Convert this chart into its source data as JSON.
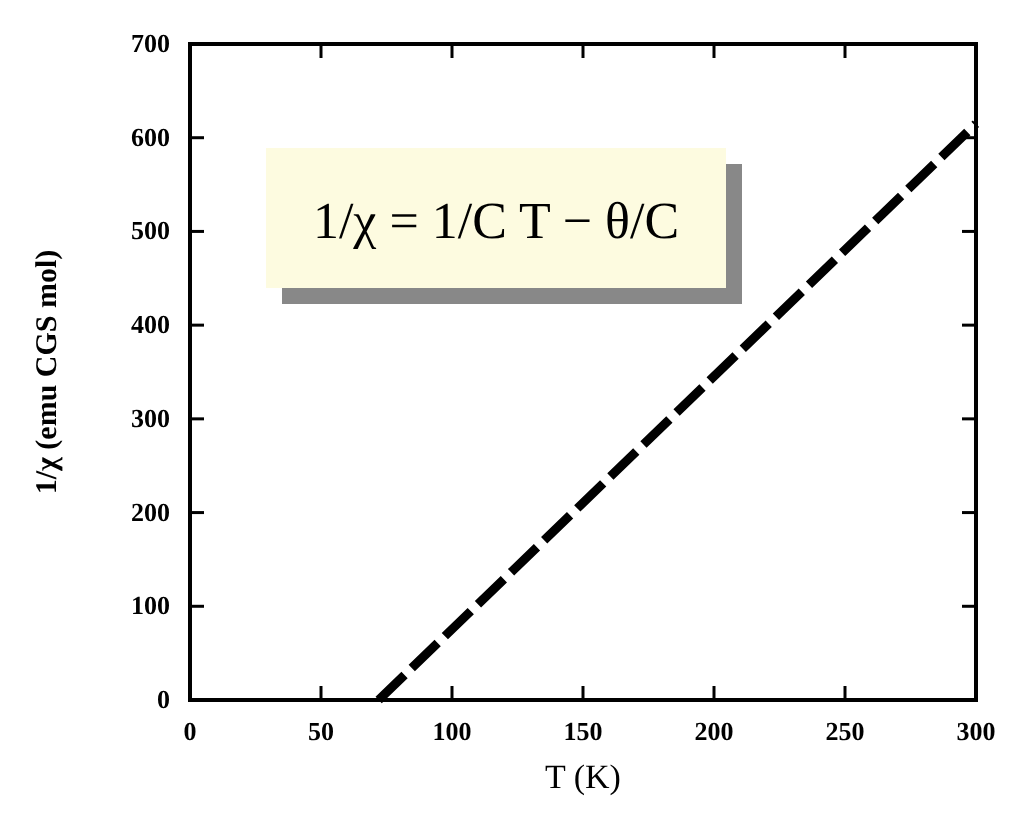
{
  "chart_data": {
    "type": "line",
    "xlabel": "T (K)",
    "ylabel": "1/χ (emu CGS mol)",
    "x": [
      72,
      300
    ],
    "series": [
      {
        "color": "#000000",
        "values": [
          0,
          615
        ]
      }
    ],
    "line_style": "dashed",
    "marker": "none",
    "grid": false,
    "xlim": [
      0,
      300
    ],
    "xticks": [
      0,
      50,
      100,
      150,
      200,
      250,
      300
    ],
    "ylim": [
      0,
      700
    ],
    "yticks": [
      0,
      100,
      200,
      300,
      400,
      500,
      600,
      700
    ],
    "annotations": [
      "1/χ = 1/C T − θ/C"
    ]
  }
}
